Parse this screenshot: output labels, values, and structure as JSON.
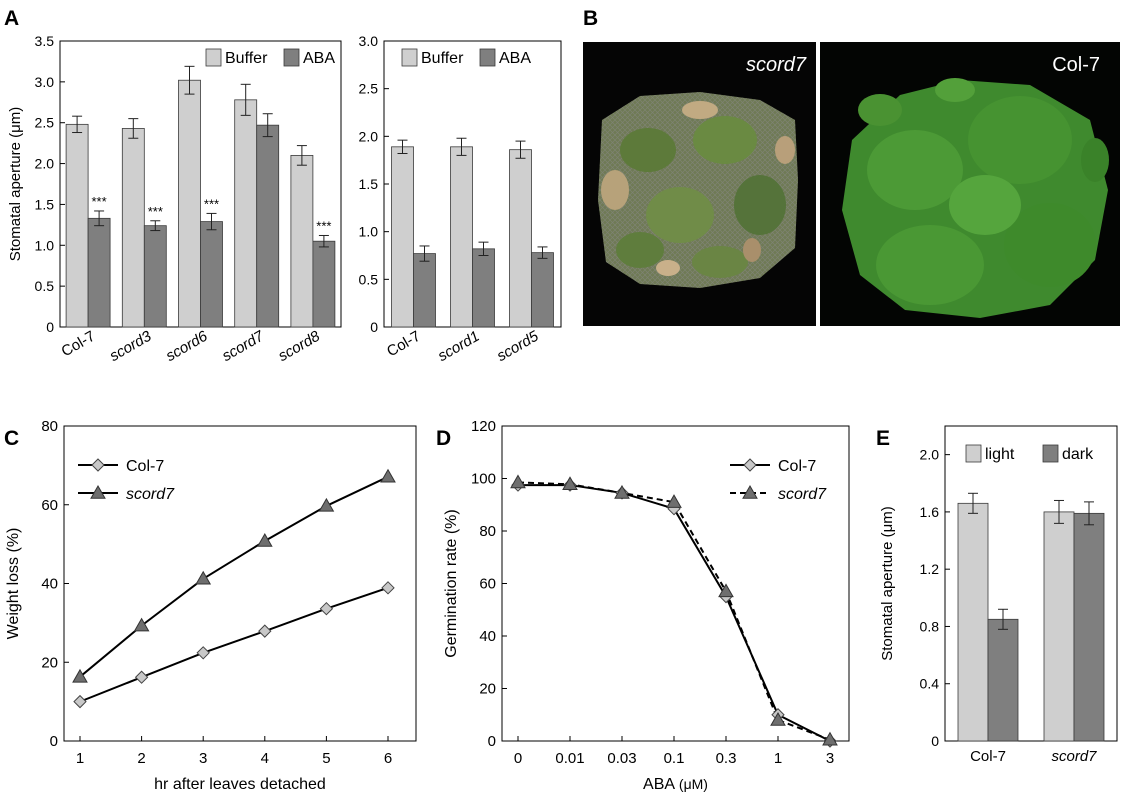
{
  "panels": {
    "A": {
      "letter": "A"
    },
    "B": {
      "letter": "B",
      "photo_left_label": "scord7",
      "photo_right_label": "Col-7"
    },
    "C": {
      "letter": "C"
    },
    "D": {
      "letter": "D"
    },
    "E": {
      "letter": "E"
    }
  },
  "colors": {
    "light_bar": "#cfcfcf",
    "dark_bar": "#7f7f7f",
    "col7_marker": "#c8c8c8",
    "scord7_marker": "#6e6e6e",
    "line": "#000000"
  },
  "chart_data": [
    {
      "id": "A1",
      "type": "bar",
      "ylabel": "Stomatal aperture (μm)",
      "ylim": [
        0,
        3.5
      ],
      "yticks": [
        "0",
        "0.5",
        "1.0",
        "1.5",
        "2.0",
        "2.5",
        "3.0",
        "3.5"
      ],
      "categories": [
        "Col-7",
        "scord3",
        "scord6",
        "scord7",
        "scord8"
      ],
      "categories_italic": [
        false,
        true,
        true,
        true,
        true
      ],
      "series": [
        {
          "name": "Buffer",
          "values": [
            2.48,
            2.43,
            3.02,
            2.78,
            2.1
          ],
          "errors": [
            0.1,
            0.12,
            0.17,
            0.19,
            0.12
          ]
        },
        {
          "name": "ABA",
          "values": [
            1.33,
            1.24,
            1.29,
            2.47,
            1.05
          ],
          "errors": [
            0.09,
            0.06,
            0.1,
            0.14,
            0.07
          ]
        }
      ],
      "annotations": [
        "***",
        "***",
        "***",
        "",
        "***"
      ],
      "legend": "top-right"
    },
    {
      "id": "A2",
      "type": "bar",
      "ylim": [
        0,
        3.0
      ],
      "yticks": [
        "0",
        "0.5",
        "1.0",
        "1.5",
        "2.0",
        "2.5",
        "3.0"
      ],
      "categories": [
        "Col-7",
        "scord1",
        "scord5"
      ],
      "categories_italic": [
        false,
        true,
        true
      ],
      "series": [
        {
          "name": "Buffer",
          "values": [
            1.89,
            1.89,
            1.86
          ],
          "errors": [
            0.07,
            0.09,
            0.09
          ]
        },
        {
          "name": "ABA",
          "values": [
            0.77,
            0.82,
            0.78
          ],
          "errors": [
            0.08,
            0.07,
            0.06
          ]
        }
      ],
      "legend": "top-right"
    },
    {
      "id": "C",
      "type": "line",
      "xlabel": "hr after leaves detached",
      "ylabel": "Weight loss (%)",
      "x": [
        1,
        2,
        3,
        4,
        5,
        6
      ],
      "xticks": [
        "1",
        "2",
        "3",
        "4",
        "5",
        "6"
      ],
      "ylim": [
        0,
        80
      ],
      "yticks": [
        "0",
        "20",
        "40",
        "60",
        "80"
      ],
      "series": [
        {
          "name": "Col-7",
          "marker": "diamond",
          "values": [
            10,
            16.2,
            22.4,
            27.9,
            33.6,
            38.9
          ]
        },
        {
          "name": "scord7",
          "marker": "triangle",
          "italic": true,
          "values": [
            16.3,
            29.3,
            41.2,
            50.8,
            59.7,
            67.1
          ]
        }
      ],
      "legend": "top-left"
    },
    {
      "id": "D",
      "type": "line",
      "xlabel": "ABA",
      "xlabel_unit": "(μM)",
      "ylabel": "Germination rate (%)",
      "xticks": [
        "0",
        "0.01",
        "0.03",
        "0.1",
        "0.3",
        "1",
        "3"
      ],
      "ylim": [
        0,
        120
      ],
      "yticks": [
        "0",
        "20",
        "40",
        "60",
        "80",
        "100",
        "120"
      ],
      "series": [
        {
          "name": "Col-7",
          "marker": "diamond",
          "dash": false,
          "values": [
            97.5,
            97.5,
            94.5,
            88.5,
            55,
            10,
            0
          ]
        },
        {
          "name": "scord7",
          "marker": "triangle",
          "dash": true,
          "italic": true,
          "values": [
            98.5,
            97.8,
            94.5,
            91,
            57,
            8,
            0.5
          ]
        }
      ],
      "legend": "top-right"
    },
    {
      "id": "E",
      "type": "bar",
      "ylabel": "Stomatal aperture (μm)",
      "ylim": [
        0,
        2.2
      ],
      "ytick_values": [
        0,
        0.4,
        0.8,
        1.2,
        1.6,
        2.0
      ],
      "yticks": [
        "0",
        "0.4",
        "0.8",
        "1.2",
        "1.6",
        "2.0"
      ],
      "categories": [
        "Col-7",
        "scord7"
      ],
      "categories_italic": [
        false,
        true
      ],
      "series": [
        {
          "name": "light",
          "values": [
            1.66,
            1.6
          ],
          "errors": [
            0.07,
            0.08
          ]
        },
        {
          "name": "dark",
          "values": [
            0.85,
            1.59
          ],
          "errors": [
            0.07,
            0.08
          ]
        }
      ],
      "legend": "top-right"
    }
  ]
}
